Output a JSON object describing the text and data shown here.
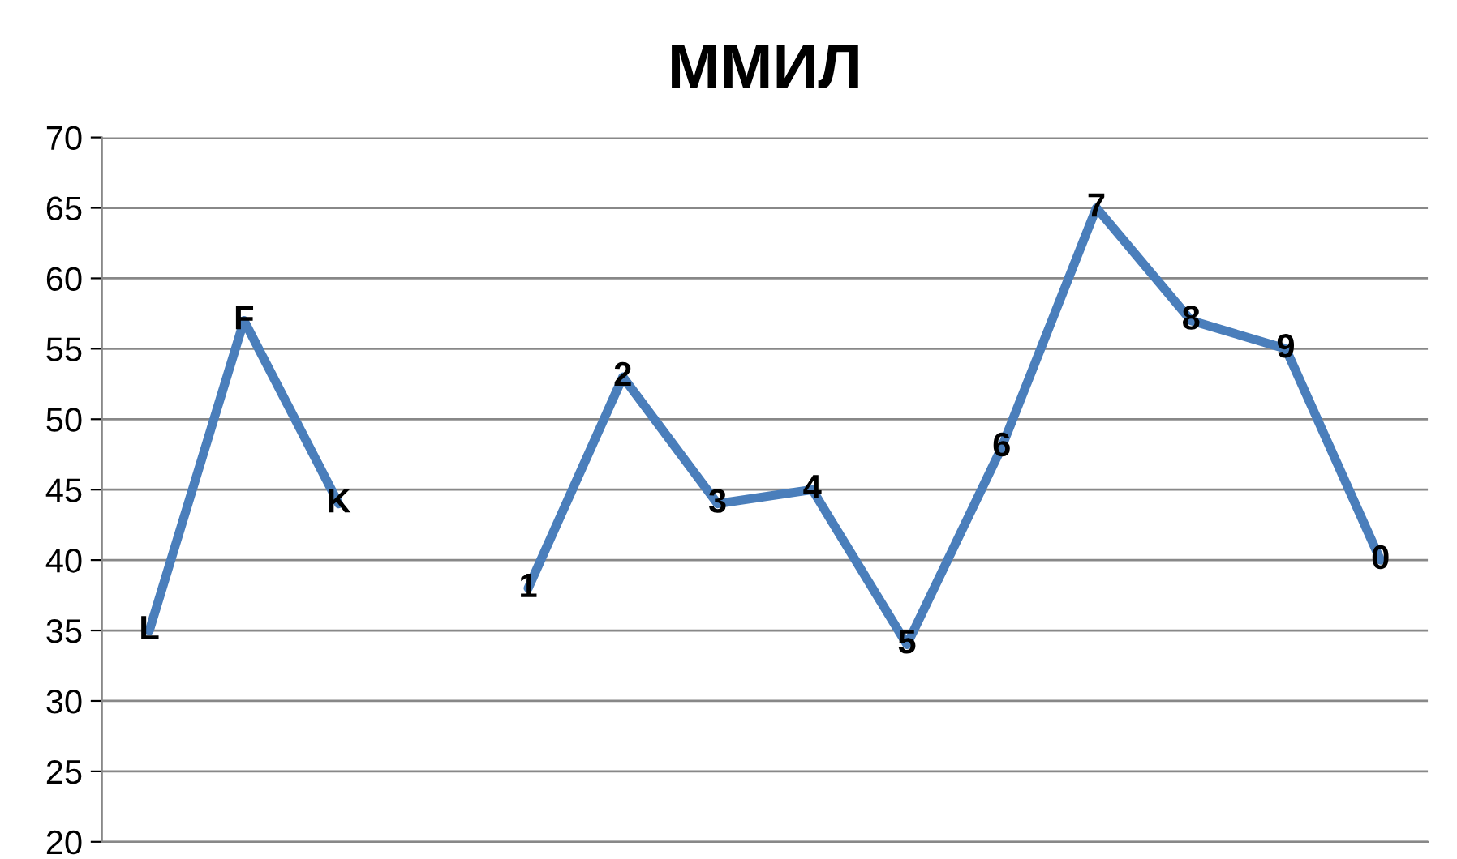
{
  "chart_data": {
    "type": "line",
    "title": "ММИЛ",
    "categories": [
      "L",
      "F",
      "K",
      null,
      "1",
      "2",
      "3",
      "4",
      "5",
      "6",
      "7",
      "8",
      "9",
      "0"
    ],
    "tick_labels": "y",
    "series": [
      {
        "color": "#4a7ebb",
        "values": [
          35,
          57,
          44,
          null,
          38,
          53,
          44,
          45,
          34,
          48,
          65,
          57,
          55,
          40
        ]
      }
    ],
    "ylim": [
      20,
      70
    ],
    "yticks": [
      20,
      25,
      30,
      35,
      40,
      45,
      50,
      55,
      60,
      65,
      70
    ],
    "grid": "y",
    "legend": false,
    "marker": "none",
    "line_style": "solid"
  }
}
